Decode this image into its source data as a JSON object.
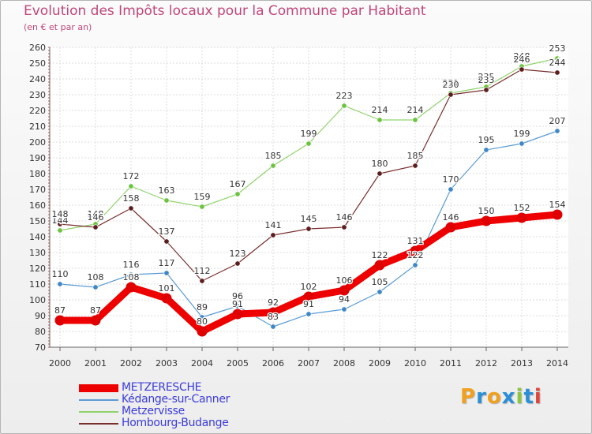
{
  "title": "Evolution des Impôts locaux pour la Commune par Habitant",
  "subtitle": "(en € et par an)",
  "brand": {
    "text": "Proxiti",
    "letters": [
      {
        "ch": "P",
        "color": "#f0a01e"
      },
      {
        "ch": "r",
        "color": "#2a8fd6"
      },
      {
        "ch": "o",
        "color": "#f0a01e"
      },
      {
        "ch": "x",
        "color": "#2a8fd6"
      },
      {
        "ch": "i",
        "color": "#8cc63f"
      },
      {
        "ch": "t",
        "color": "#2a8fd6"
      },
      {
        "ch": "i",
        "color": "#e0453a"
      }
    ]
  },
  "chart_data": {
    "type": "line",
    "title": "Evolution des Impôts locaux pour la Commune par Habitant",
    "subtitle": "(en € et par an)",
    "x": [
      2000,
      2001,
      2002,
      2003,
      2004,
      2005,
      2006,
      2007,
      2008,
      2009,
      2010,
      2011,
      2012,
      2013,
      2014
    ],
    "x_tick_labels": [
      "2000",
      "2001",
      "2002",
      "2003",
      "2004",
      "2005",
      "2006",
      "2007",
      "2008",
      "2009",
      "2010",
      "2011",
      "2012",
      "2013",
      "2014"
    ],
    "y_ticks": [
      70,
      80,
      90,
      100,
      110,
      120,
      130,
      140,
      150,
      160,
      170,
      180,
      190,
      200,
      210,
      220,
      230,
      240,
      250,
      260
    ],
    "ylim": [
      70,
      260
    ],
    "grid": true,
    "legend_position": "bottom-left",
    "series": [
      {
        "name": "Kédange-sur-Canner",
        "color": "#5b9bd5",
        "dot": "#3f86c6",
        "width": 1.2,
        "radius": 3.2,
        "values": [
          110,
          108,
          116,
          117,
          89,
          96,
          83,
          91,
          94,
          105,
          122,
          170,
          195,
          199,
          207
        ],
        "labels": [
          "110",
          "108",
          "116",
          "117",
          "89",
          "96",
          "83",
          "91",
          "94",
          "105",
          "122",
          "170",
          "195",
          "199",
          "207"
        ]
      },
      {
        "name": "Metzervisse",
        "color": "#8fd36b",
        "dot": "#6cc33f",
        "width": 1.2,
        "radius": 3.2,
        "values": [
          144,
          148,
          172,
          163,
          159,
          167,
          185,
          199,
          223,
          214,
          214,
          231,
          235,
          248,
          253
        ],
        "labels": [
          "144",
          "148",
          "172",
          "163",
          "159",
          "167",
          "185",
          "199",
          "223",
          "214",
          "214",
          "231",
          "235",
          "248",
          "253"
        ]
      },
      {
        "name": "Hombourg-Budange",
        "color": "#7a2e2e",
        "dot": "#5c1d1d",
        "width": 1.2,
        "radius": 3.2,
        "values": [
          148,
          146,
          158,
          137,
          112,
          123,
          141,
          145,
          146,
          180,
          185,
          230,
          233,
          246,
          244
        ],
        "labels": [
          "148",
          "146",
          "158",
          "137",
          "112",
          "123",
          "141",
          "145",
          "146",
          "180",
          "185",
          "230",
          "233",
          "246",
          "244"
        ]
      },
      {
        "name": "METZERESCHE",
        "color": "#ee0000",
        "dot": "#e00000",
        "width": 9,
        "radius": 6.5,
        "values": [
          87,
          87,
          108,
          101,
          80,
          91,
          92,
          102,
          106,
          122,
          131,
          146,
          150,
          152,
          154
        ],
        "labels": [
          "87",
          "87",
          "108",
          "101",
          "80",
          "91",
          "92",
          "102",
          "106",
          "122",
          "131",
          "146",
          "150",
          "152",
          "154"
        ]
      }
    ]
  },
  "legend": [
    {
      "name": "METZERESCHE",
      "color": "#ee0000",
      "thick": true
    },
    {
      "name": "Kédange-sur-Canner",
      "color": "#5b9bd5",
      "thick": false
    },
    {
      "name": "Metzervisse",
      "color": "#8fd36b",
      "thick": false
    },
    {
      "name": "Hombourg-Budange",
      "color": "#7a2e2e",
      "thick": false
    }
  ]
}
